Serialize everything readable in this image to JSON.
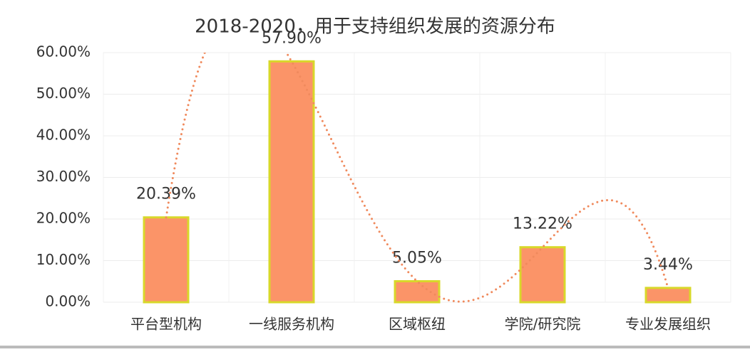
{
  "chart_data": {
    "type": "bar",
    "title": "2018-2020，用于支持组织发展的资源分布",
    "categories": [
      "平台型机构",
      "一线服务机构",
      "区域枢纽",
      "学院/研究院",
      "专业发展组织"
    ],
    "values": [
      20.39,
      57.9,
      5.05,
      13.22,
      3.44
    ],
    "value_labels": [
      "20.39%",
      "57.90%",
      "5.05%",
      "13.22%",
      "3.44%"
    ],
    "color": "#fb9468",
    "edge_color": "#d8d82a",
    "trendline_color": "#f08a5d",
    "ylim": [
      0,
      60
    ],
    "yticks": [
      {
        "value": 0,
        "label": "0.00%"
      },
      {
        "value": 10,
        "label": "10.00%"
      },
      {
        "value": 20,
        "label": "20.00%"
      },
      {
        "value": 30,
        "label": "30.00%"
      },
      {
        "value": 40,
        "label": "40.00%"
      },
      {
        "value": 50,
        "label": "50.00%"
      },
      {
        "value": 60,
        "label": "60.00%"
      }
    ],
    "grid": true,
    "trendline": true
  }
}
